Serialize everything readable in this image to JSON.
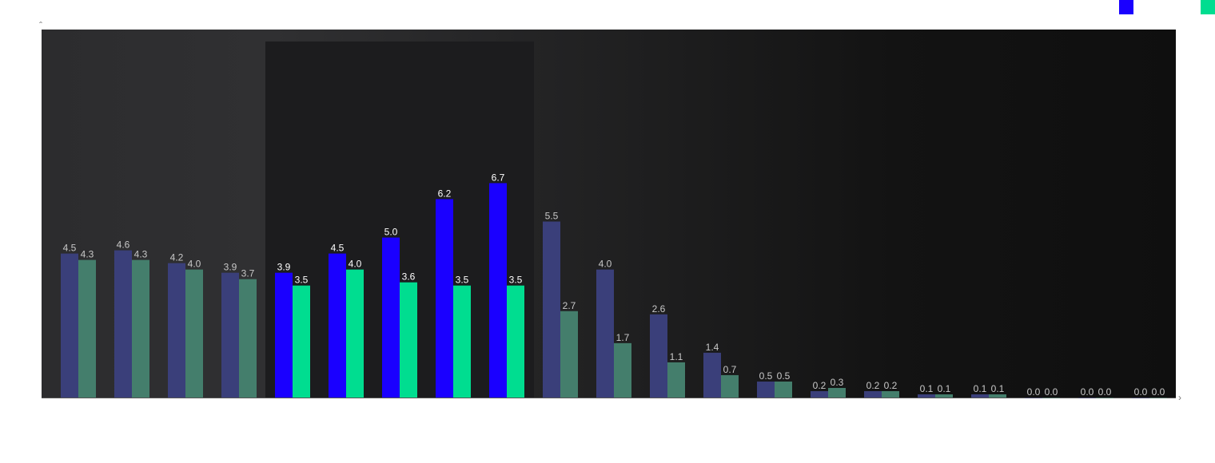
{
  "chart_data": {
    "type": "bar",
    "categories": [
      null,
      null,
      null,
      null,
      null,
      null,
      null,
      null,
      null,
      null,
      null,
      null,
      null,
      null,
      null,
      null,
      null,
      null,
      null,
      null,
      null
    ],
    "highlight_categories": [
      4,
      5,
      6,
      7,
      8
    ],
    "series": [
      {
        "color": "#1a00ff",
        "muted_color": "#3a3f7a",
        "values": [
          4.5,
          4.6,
          4.2,
          3.9,
          3.9,
          4.5,
          5.0,
          6.2,
          6.7,
          5.5,
          4.0,
          2.6,
          1.4,
          0.5,
          0.2,
          0.2,
          0.1,
          0.1,
          0.0,
          0.0,
          0.0
        ],
        "value_labels": [
          "4.5",
          "4.6",
          "4.2",
          "3.9",
          "3.9",
          "4.5",
          "5.0",
          "6.2",
          "6.7",
          "5.5",
          "4.0",
          "2.6",
          "1.4",
          "0.5",
          "0.2",
          "0.2",
          "0.1",
          "0.1",
          "0.0",
          "0.0",
          "0.0"
        ]
      },
      {
        "color": "#00dd90",
        "muted_color": "#447e6c",
        "values": [
          4.3,
          4.3,
          4.0,
          3.7,
          3.5,
          4.0,
          3.6,
          3.5,
          3.5,
          2.7,
          1.7,
          1.1,
          0.7,
          0.5,
          0.3,
          0.2,
          0.1,
          0.1,
          0.0,
          0.0,
          0.0
        ],
        "value_labels": [
          "4.3",
          "4.3",
          "4.0",
          "3.7",
          "3.5",
          "4.0",
          "3.6",
          "3.5",
          "3.5",
          "2.7",
          "1.7",
          "1.1",
          "0.7",
          "0.5",
          "0.3",
          "0.2",
          "0.1",
          "0.1",
          "0.0",
          "0.0",
          "0.0"
        ]
      }
    ],
    "ylim": [
      0,
      11.5
    ]
  }
}
